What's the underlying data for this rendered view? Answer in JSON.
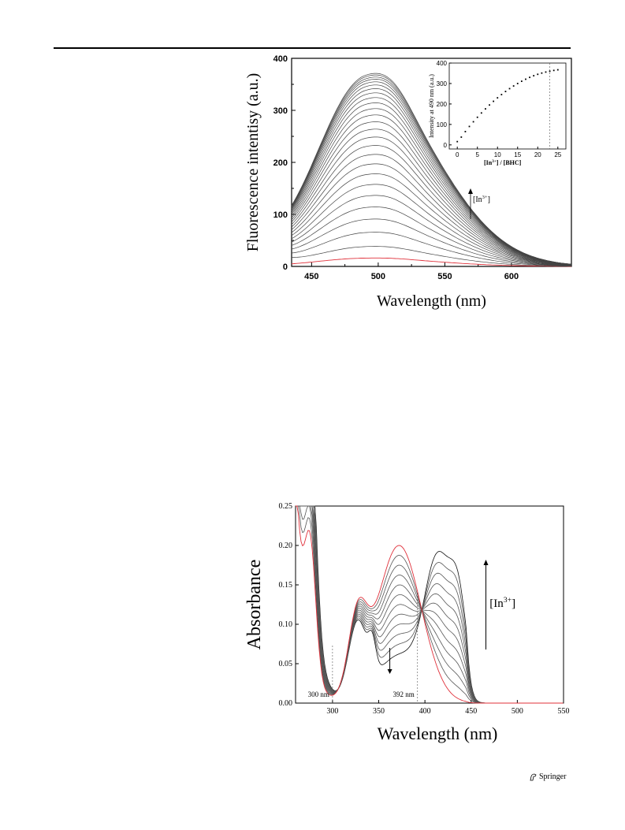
{
  "publisher": {
    "name": "Springer",
    "icon": "springer-horse-icon"
  },
  "charts": {
    "fluorescence": {
      "type": "line",
      "xlabel": "Wavelength (nm)",
      "ylabel": "Fluorescence intentisy (a.u.)",
      "xlim": [
        435,
        645
      ],
      "ylim": [
        0,
        400
      ],
      "xticks": [
        450,
        500,
        550,
        600
      ],
      "yticks": [
        0,
        100,
        200,
        300,
        400
      ],
      "peak_wavelength": 490,
      "series": [
        {
          "peak": 16,
          "color": "#e0303a"
        },
        {
          "peak": 38
        },
        {
          "peak": 65
        },
        {
          "peak": 90
        },
        {
          "peak": 113
        },
        {
          "peak": 135
        },
        {
          "peak": 156
        },
        {
          "peak": 176
        },
        {
          "peak": 195
        },
        {
          "peak": 213
        },
        {
          "peak": 230
        },
        {
          "peak": 246
        },
        {
          "peak": 261
        },
        {
          "peak": 275
        },
        {
          "peak": 288
        },
        {
          "peak": 300
        },
        {
          "peak": 311
        },
        {
          "peak": 321
        },
        {
          "peak": 330
        },
        {
          "peak": 338
        },
        {
          "peak": 345
        },
        {
          "peak": 351
        },
        {
          "peak": 356
        },
        {
          "peak": 360
        },
        {
          "peak": 364
        },
        {
          "peak": 367
        }
      ],
      "annotation": {
        "label": "[In",
        "sup": "3+",
        "close": "]",
        "direction": "up"
      },
      "inset": {
        "type": "scatter",
        "xlabel_pre": "[In",
        "xlabel_sup": "3+",
        "xlabel_post": "] / [BHC]",
        "ylabel": "Intensity at 490 nm (a.u.)",
        "xlim": [
          -2,
          27
        ],
        "ylim": [
          -20,
          400
        ],
        "xticks": [
          0,
          5,
          10,
          15,
          20,
          25
        ],
        "yticks": [
          0,
          100,
          200,
          300,
          400
        ],
        "x": [
          0,
          1,
          2,
          3,
          4,
          5,
          6,
          7,
          8,
          9,
          10,
          11,
          12,
          13,
          14,
          15,
          16,
          17,
          18,
          19,
          20,
          21,
          22,
          23,
          24,
          25
        ],
        "y": [
          16,
          38,
          65,
          90,
          113,
          135,
          156,
          176,
          195,
          213,
          230,
          246,
          261,
          275,
          288,
          300,
          311,
          321,
          330,
          338,
          345,
          351,
          356,
          360,
          364,
          367
        ],
        "vline_x": 23
      }
    },
    "absorbance": {
      "type": "line",
      "xlabel": "Wavelength (nm)",
      "ylabel": "Absorbance",
      "xlim": [
        260,
        550
      ],
      "ylim": [
        0,
        0.25
      ],
      "xticks": [
        300,
        350,
        400,
        450,
        500,
        550
      ],
      "yticks": [
        "0.00",
        "0.05",
        "0.10",
        "0.15",
        "0.20",
        "0.25"
      ],
      "series_count": 12,
      "free_ligand_color": "#e0303a",
      "isosbestic_points": [
        {
          "x": 300,
          "label": "300 nm"
        },
        {
          "x": 392,
          "label": "392 nm"
        }
      ],
      "annotation": {
        "label": "[In",
        "sup": "3+",
        "close": "]"
      },
      "arrows": [
        "down",
        "up"
      ]
    }
  }
}
